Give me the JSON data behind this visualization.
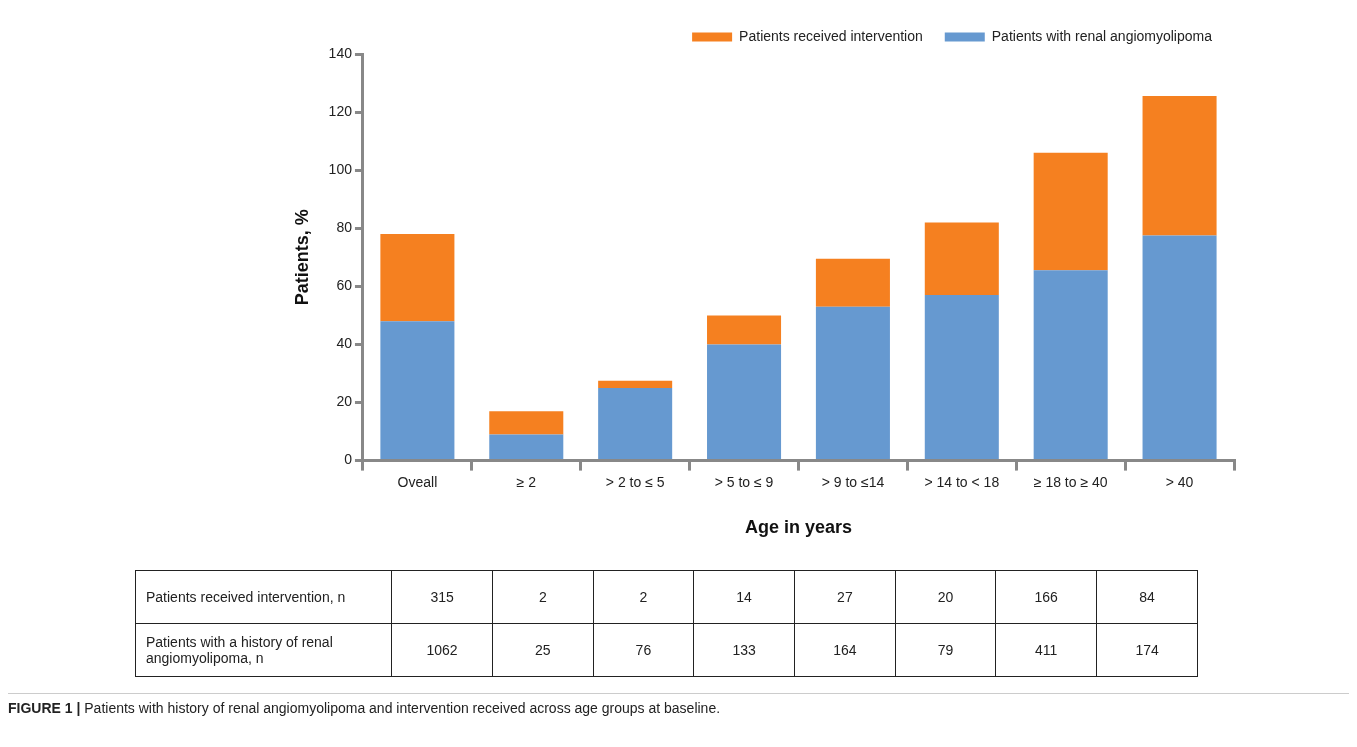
{
  "chart_data": [
    {
      "type": "bar",
      "stacked": true,
      "xlabel": "Age in years",
      "ylabel": "Patients, %",
      "categories": [
        "Oveall",
        "≥ 2",
        "> 2 to ≤ 5",
        "> 5 to ≤ 9",
        "> 9 to ≤14",
        "> 14 to < 18",
        "≥ 18 to ≥ 40",
        "> 40"
      ],
      "series": [
        {
          "name": "Patients with renal angiomyolipoma",
          "color": "#6699d0",
          "values": [
            48,
            9,
            25,
            40,
            53,
            57,
            65.5,
            77.5
          ]
        },
        {
          "name": "Patients received intervention",
          "color": "#f58020",
          "values": [
            30,
            8,
            2.5,
            10,
            16.5,
            25,
            40.5,
            48
          ]
        }
      ],
      "ylim": [
        0,
        140
      ],
      "yticks": [
        0,
        20,
        40,
        60,
        80,
        100,
        120,
        140
      ],
      "grid": false,
      "legend": "top right",
      "annotations": [
        "FIGURE 1 | Patients with history of renal angiomyolipoma and intervention received across age groups at baseline."
      ]
    },
    {
      "type": "other",
      "annotations": [
        "Patients received intervention, n",
        "315",
        "2",
        "2",
        "14",
        "27",
        "20",
        "166",
        "84",
        "Patients with a history of renal angiomyolipoma, n",
        "1062",
        "25",
        "76",
        "133",
        "164",
        "79",
        "411",
        "174"
      ]
    }
  ]
}
